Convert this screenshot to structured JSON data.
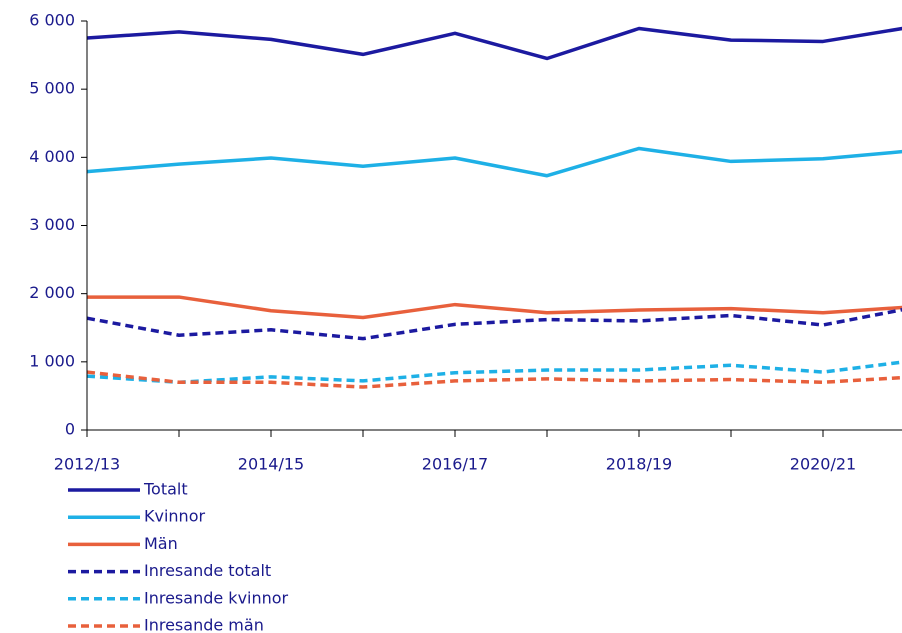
{
  "chart_data": {
    "type": "line",
    "categories": [
      "2012/13",
      null,
      "2014/15",
      null,
      "2016/17",
      null,
      "2018/19",
      null,
      "2020/21",
      null,
      null
    ],
    "ylim": [
      0,
      6000
    ],
    "yticks": [
      0,
      {
        "value": 1000,
        "label": "1 000"
      },
      {
        "value": 2000,
        "label": "2 000"
      },
      {
        "value": 3000,
        "label": "3 000"
      },
      {
        "value": 4000,
        "label": "4 000"
      },
      {
        "value": 5000,
        "label": "5 000"
      },
      {
        "value": 6000,
        "label": "6 000"
      }
    ],
    "legend": "bottom",
    "series": [
      {
        "name": "Totalt",
        "color": "#1c1aa0",
        "dashed": false,
        "values": [
          5750,
          5840,
          5730,
          5510,
          5820,
          5450,
          5890,
          5720,
          5700,
          5920,
          null
        ]
      },
      {
        "name": "Kvinnor",
        "color": "#1eb0e6",
        "dashed": false,
        "values": [
          3790,
          3900,
          3990,
          3870,
          3990,
          3730,
          4130,
          3940,
          3980,
          4100,
          null
        ]
      },
      {
        "name": "Män",
        "color": "#e8603c",
        "dashed": false,
        "values": [
          1950,
          1950,
          1750,
          1650,
          1840,
          1720,
          1760,
          1780,
          1720,
          1810,
          null
        ]
      },
      {
        "name": "Inresande totalt",
        "color": "#1c1aa0",
        "dashed": true,
        "values": [
          1640,
          1390,
          1470,
          1340,
          1550,
          1620,
          1600,
          1680,
          1540,
          1800,
          null
        ]
      },
      {
        "name": "Inresande kvinnor",
        "color": "#1eb0e6",
        "dashed": true,
        "values": [
          790,
          700,
          780,
          720,
          840,
          880,
          880,
          950,
          850,
          1020,
          null
        ]
      },
      {
        "name": "Inresande män",
        "color": "#e8603c",
        "dashed": true,
        "values": [
          850,
          700,
          700,
          630,
          720,
          750,
          720,
          740,
          700,
          780,
          null
        ]
      }
    ]
  }
}
